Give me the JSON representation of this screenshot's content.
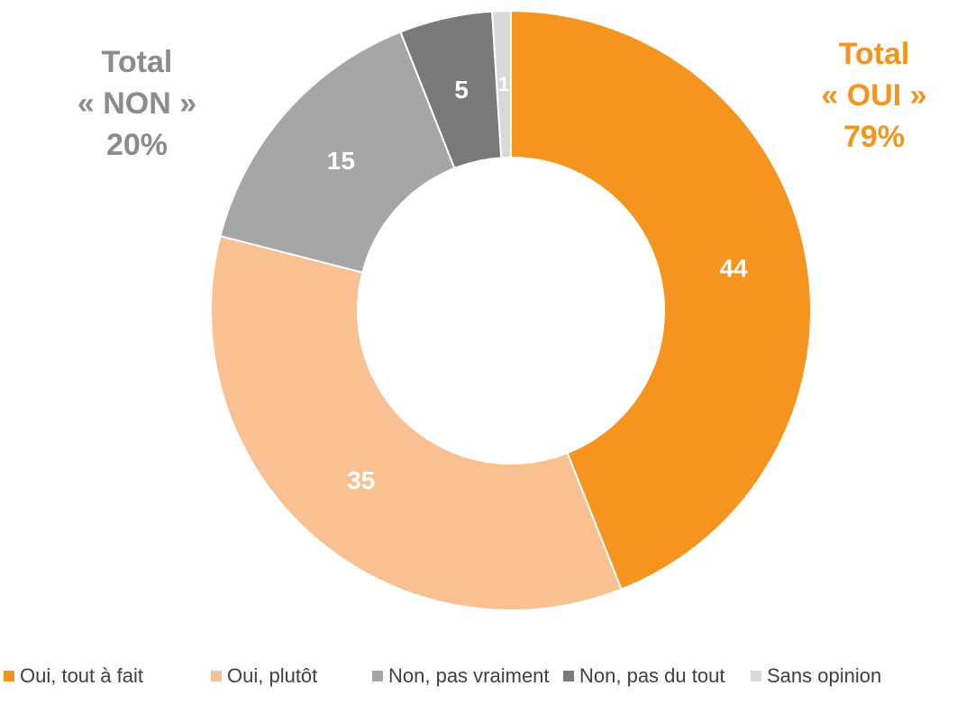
{
  "chart_data": {
    "type": "pie",
    "donut": true,
    "title": "",
    "categories": [
      "Oui, tout à fait",
      "Oui, plutôt",
      "Non, pas vraiment",
      "Non, pas du tout",
      "Sans opinion"
    ],
    "values": [
      44,
      35,
      15,
      5,
      1
    ],
    "data_labels": [
      "44",
      "35",
      "15",
      "5",
      "1"
    ],
    "colors": [
      "#f5951f",
      "#f9c192",
      "#a6a6a6",
      "#7a7a7a",
      "#d9d9d9"
    ],
    "label_color": "#ffffff",
    "legend_position": "bottom"
  },
  "annotations": {
    "non": {
      "line1": "Total",
      "line2": "« NON »",
      "line3": "20%",
      "color": "#8c8c8c"
    },
    "oui": {
      "line1": "Total",
      "line2": "« OUI »",
      "line3": "79%",
      "color": "#f5951f"
    }
  }
}
